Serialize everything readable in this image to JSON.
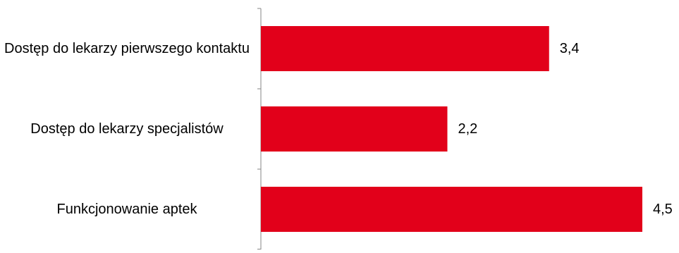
{
  "chart_data": {
    "type": "bar",
    "orientation": "horizontal",
    "categories": [
      "Dostęp do lekarzy pierwszego kontaktu",
      "Dostęp do lekarzy specjalistów",
      "Funkcjonowanie aptek"
    ],
    "values": [
      3.4,
      2.2,
      4.5
    ],
    "value_labels": [
      "3,4",
      "2,2",
      "4,5"
    ],
    "xlim": [
      0,
      4.5
    ],
    "grid": false,
    "legend": "none",
    "bar_color": "#e2001a",
    "axis_color": "#868686"
  }
}
